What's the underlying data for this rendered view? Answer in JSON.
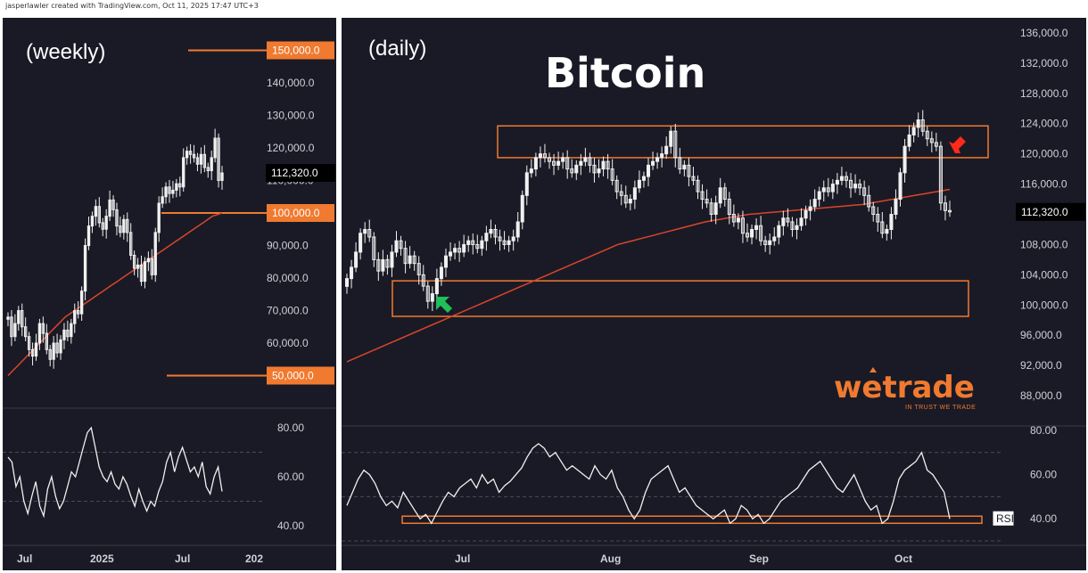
{
  "credit": "jasperlawler created with TradingView.com, Oct 11, 2025 17:47 UTC+3",
  "title": "Bitcoin",
  "colors": {
    "background": "#1a1a26",
    "candle": "#f0f0f0",
    "ma": "#d9452b",
    "accent": "#f07a30",
    "rsi": "#f0f0f0",
    "green_arrow": "#1fbf5a",
    "red_arrow": "#ff2a1a"
  },
  "branding": {
    "logo": "wetrade",
    "tagline": "IN TRUST WE TRADE"
  },
  "chart_data": [
    {
      "id": "weekly",
      "type": "candlestick",
      "label": "(weekly)",
      "ylim": [
        40000,
        160000
      ],
      "y_ticks": [
        "140,000.0",
        "130,000.0",
        "120,000.0",
        "110,000.0",
        "90,000.0",
        "80,000.0",
        "70,000.0",
        "60,000.0"
      ],
      "x_ticks": [
        "Jul",
        "2025",
        "Jul",
        "202"
      ],
      "last_price": "112,320.0",
      "levels": [
        {
          "value": 150000,
          "label": "150,000.0"
        },
        {
          "value": 100000,
          "label": "100,000.0"
        },
        {
          "value": 50000,
          "label": "50,000.0"
        }
      ],
      "close": [
        68000,
        62000,
        66000,
        70000,
        65000,
        62000,
        58000,
        56000,
        60000,
        66000,
        63000,
        58000,
        55000,
        60000,
        57000,
        61000,
        64000,
        62000,
        66000,
        70000,
        69000,
        76000,
        90000,
        96000,
        99000,
        102000,
        97000,
        95000,
        99000,
        104000,
        101000,
        96000,
        94000,
        98000,
        94000,
        87000,
        83000,
        84000,
        79000,
        85000,
        86000,
        81000,
        94000,
        103000,
        105000,
        108000,
        106000,
        107000,
        109000,
        108000,
        117000,
        119000,
        118000,
        117000,
        115000,
        118000,
        114000,
        113000,
        117000,
        123000,
        110000,
        112320
      ],
      "ma": [
        50000,
        51500,
        53000,
        54500,
        56000,
        57500,
        59000,
        60500,
        62000,
        63500,
        65000,
        66500,
        68000,
        69000,
        70000,
        71000,
        72000,
        73000,
        74000,
        75000,
        76000,
        77000,
        78000,
        79000,
        80000,
        81000,
        82000,
        83000,
        84000,
        85000,
        86000,
        87000,
        88000,
        89000,
        90000,
        91000,
        92000,
        93000,
        94000,
        95000,
        96000,
        97000,
        98000,
        99000,
        99500,
        100000
      ],
      "rsi": {
        "ylim": [
          32,
          88
        ],
        "y_ticks": [
          "80.00",
          "60.00",
          "40.00"
        ],
        "values": [
          68,
          66,
          56,
          60,
          50,
          45,
          52,
          58,
          48,
          44,
          55,
          60,
          52,
          47,
          50,
          56,
          62,
          60,
          66,
          72,
          78,
          80,
          72,
          64,
          60,
          58,
          62,
          57,
          55,
          60,
          57,
          52,
          48,
          55,
          50,
          46,
          50,
          48,
          54,
          58,
          66,
          70,
          62,
          68,
          72,
          67,
          62,
          64,
          60,
          66,
          56,
          53,
          60,
          64,
          54
        ]
      }
    },
    {
      "id": "daily",
      "type": "candlestick",
      "label": "(daily)",
      "ylim": [
        84000,
        138000
      ],
      "y_ticks": [
        "136,000.0",
        "132,000.0",
        "128,000.0",
        "124,000.0",
        "120,000.0",
        "116,000.0",
        "108,000.0",
        "104,000.0",
        "100,000.0",
        "96,000.0",
        "92,000.0",
        "88,000.0"
      ],
      "x_ticks": [
        "Jul",
        "Aug",
        "Sep",
        "Oct"
      ],
      "last_price": "112,320.0",
      "zones": [
        {
          "from": 119500,
          "to": 123700
        },
        {
          "from": 98500,
          "to": 103200
        }
      ],
      "close": [
        103500,
        105000,
        107000,
        109500,
        110000,
        109000,
        106000,
        104500,
        106000,
        105000,
        107000,
        108500,
        107500,
        105500,
        106500,
        105500,
        104000,
        102500,
        100500,
        101500,
        103500,
        105000,
        106500,
        107000,
        107500,
        107000,
        108000,
        108500,
        108000,
        107500,
        108500,
        109500,
        110000,
        109000,
        108500,
        108000,
        108500,
        109000,
        111000,
        114500,
        117500,
        118000,
        119500,
        120000,
        119500,
        119000,
        118500,
        119000,
        119500,
        118000,
        117500,
        118500,
        119000,
        119500,
        118500,
        117500,
        118000,
        119000,
        118000,
        116500,
        115000,
        114500,
        113500,
        114000,
        115500,
        116500,
        117000,
        118500,
        119000,
        119500,
        120000,
        121000,
        123000,
        119500,
        118000,
        118500,
        117000,
        116500,
        115000,
        114000,
        113500,
        112000,
        113500,
        115500,
        114000,
        112000,
        111000,
        111500,
        109500,
        109000,
        110000,
        110500,
        108500,
        108000,
        108500,
        109000,
        110500,
        111500,
        111000,
        110000,
        110500,
        111500,
        112500,
        113000,
        114000,
        115000,
        115500,
        115000,
        116000,
        116500,
        117000,
        116500,
        115500,
        116000,
        115500,
        114500,
        113000,
        112000,
        111000,
        109500,
        110000,
        112000,
        114000,
        117500,
        121000,
        122500,
        123500,
        124500,
        123000,
        122000,
        121500,
        121000,
        113500,
        112500,
        112320
      ],
      "ma": [
        92500,
        93000,
        93500,
        94000,
        94500,
        95000,
        95500,
        96000,
        96500,
        97000,
        97500,
        98000,
        98500,
        99000,
        99500,
        100000,
        100500,
        101000,
        101500,
        102000,
        102500,
        103000,
        103500,
        104000,
        104500,
        105000,
        105500,
        106000,
        106500,
        107000,
        107500,
        108000,
        108300,
        108600,
        108900,
        109200,
        109500,
        109800,
        110100,
        110400,
        110700,
        111000,
        111200,
        111400,
        111600,
        111800,
        112000,
        112100,
        112200,
        112300,
        112400,
        112500,
        112600,
        112700,
        112800,
        112900,
        113000,
        113100,
        113200,
        113300,
        113500,
        113700,
        113900,
        114100,
        114300,
        114500,
        114700,
        114900,
        115100,
        115300
      ],
      "rsi": {
        "ylim": [
          28,
          82
        ],
        "y_ticks": [
          "80.00",
          "60.00",
          "40.00"
        ],
        "label": "RSI",
        "values": [
          46,
          52,
          58,
          62,
          60,
          56,
          50,
          46,
          48,
          45,
          52,
          48,
          44,
          40,
          42,
          38,
          43,
          48,
          52,
          50,
          54,
          56,
          58,
          54,
          60,
          56,
          58,
          52,
          55,
          57,
          60,
          63,
          68,
          72,
          74,
          72,
          68,
          70,
          66,
          62,
          64,
          62,
          60,
          58,
          64,
          60,
          58,
          62,
          54,
          50,
          44,
          40,
          44,
          52,
          58,
          60,
          62,
          64,
          58,
          52,
          54,
          50,
          46,
          44,
          42,
          40,
          42,
          44,
          38,
          40,
          46,
          44,
          40,
          42,
          38,
          40,
          44,
          48,
          50,
          52,
          54,
          58,
          62,
          64,
          66,
          62,
          58,
          54,
          52,
          56,
          60,
          54,
          48,
          44,
          46,
          38,
          40,
          48,
          58,
          62,
          64,
          66,
          70,
          62,
          60,
          56,
          52,
          40
        ]
      }
    }
  ]
}
